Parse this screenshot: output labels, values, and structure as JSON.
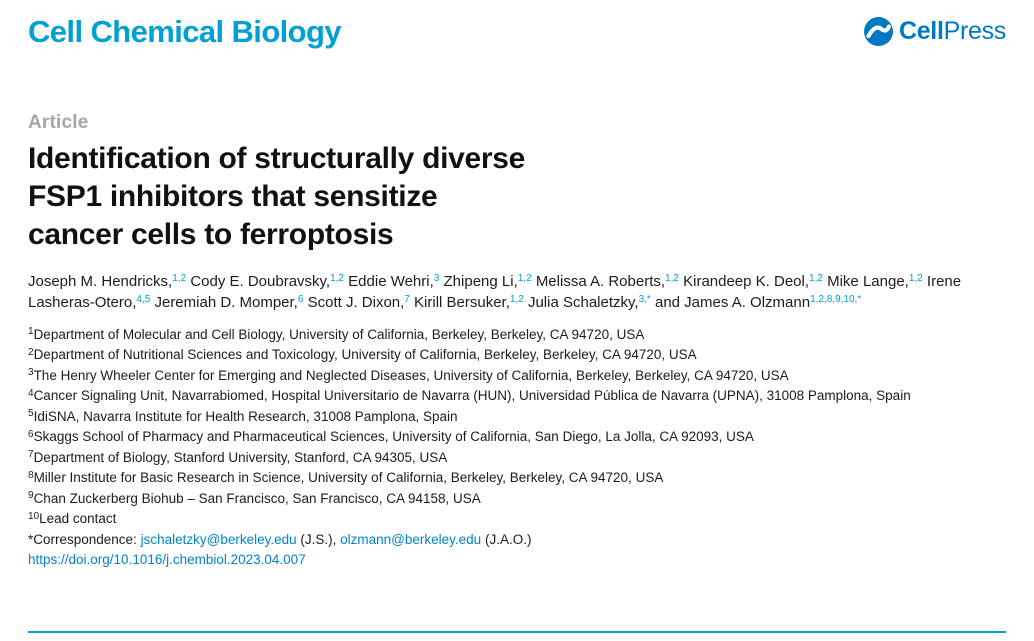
{
  "header": {
    "journal_title": "Cell Chemical Biology",
    "publisher_bold": "Cell",
    "publisher_regular": "Press",
    "publisher_icon": "cellpress-swoosh-circle-icon"
  },
  "article": {
    "label": "Article",
    "title": "Identification of structurally diverse\nFSP1 inhibitors that sensitize\ncancer cells to ferroptosis"
  },
  "authors": [
    {
      "name": "Joseph M. Hendricks,",
      "sup": "1,2"
    },
    {
      "name": "Cody E. Doubravsky,",
      "sup": "1,2"
    },
    {
      "name": "Eddie Wehri,",
      "sup": "3"
    },
    {
      "name": "Zhipeng Li,",
      "sup": "1,2"
    },
    {
      "name": "Melissa A. Roberts,",
      "sup": "1,2"
    },
    {
      "name": "Kirandeep K. Deol,",
      "sup": "1,2"
    },
    {
      "name": "Mike Lange,",
      "sup": "1,2"
    },
    {
      "name": "Irene Lasheras-Otero,",
      "sup": "4,5"
    },
    {
      "name": "Jeremiah D. Momper,",
      "sup": "6"
    },
    {
      "name": "Scott J. Dixon,",
      "sup": "7"
    },
    {
      "name": "Kirill Bersuker,",
      "sup": "1,2"
    },
    {
      "name": "Julia Schaletzky,",
      "sup": "3,*"
    },
    {
      "name": "and James A. Olzmann",
      "sup": "1,2,8,9,10,*"
    }
  ],
  "affiliations": [
    {
      "sup": "1",
      "text": "Department of Molecular and Cell Biology, University of California, Berkeley, Berkeley, CA 94720, USA"
    },
    {
      "sup": "2",
      "text": "Department of Nutritional Sciences and Toxicology, University of California, Berkeley, Berkeley, CA 94720, USA"
    },
    {
      "sup": "3",
      "text": "The Henry Wheeler Center for Emerging and Neglected Diseases, University of California, Berkeley, Berkeley, CA 94720, USA"
    },
    {
      "sup": "4",
      "text": "Cancer Signaling Unit, Navarrabiomed, Hospital Universitario de Navarra (HUN), Universidad Pública de Navarra (UPNA), 31008 Pamplona, Spain"
    },
    {
      "sup": "5",
      "text": "IdiSNA, Navarra Institute for Health Research, 31008 Pamplona, Spain"
    },
    {
      "sup": "6",
      "text": "Skaggs School of Pharmacy and Pharmaceutical Sciences, University of California, San Diego, La Jolla, CA 92093, USA"
    },
    {
      "sup": "7",
      "text": "Department of Biology, Stanford University, Stanford, CA 94305, USA"
    },
    {
      "sup": "8",
      "text": "Miller Institute for Basic Research in Science, University of California, Berkeley, Berkeley, CA 94720, USA"
    },
    {
      "sup": "9",
      "text": "Chan Zuckerberg Biohub – San Francisco, San Francisco, CA 94158, USA"
    },
    {
      "sup": "10",
      "text": "Lead contact"
    }
  ],
  "correspondence": {
    "label": "*Correspondence:",
    "email1": "jschaletzky@berkeley.edu",
    "after_email1": "(J.S.),",
    "email2": "olzmann@berkeley.edu",
    "after_email2": "(J.A.O.)"
  },
  "doi": "https://doi.org/10.1016/j.chembiol.2023.04.007",
  "colors": {
    "journal_blue": "#00a0d2",
    "publisher_blue": "#0079c2",
    "link_blue": "#0084c9",
    "superscript_blue": "#00a0d2",
    "label_gray": "#a6a6a6",
    "rule_blue": "#00a0d2"
  }
}
